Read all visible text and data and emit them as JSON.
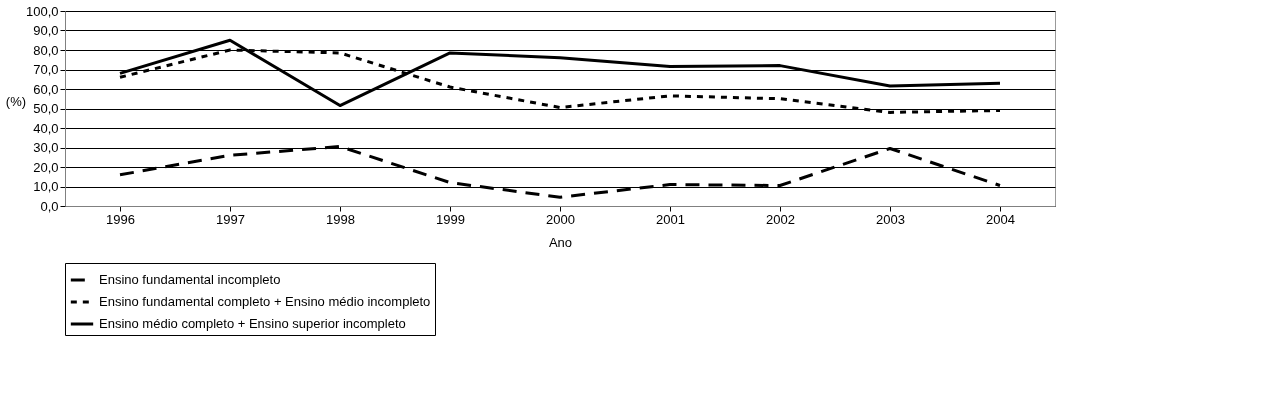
{
  "chart_data": {
    "type": "line",
    "xlabel": "Ano",
    "ylabel": "(%)",
    "categories": [
      "1996",
      "1997",
      "1998",
      "1999",
      "2000",
      "2001",
      "2002",
      "2003",
      "2004"
    ],
    "series": [
      {
        "name": "Ensino fundamental incompleto",
        "color": "#000000",
        "line_style": "dashed",
        "values": [
          16,
          26,
          30.5,
          12,
          4.5,
          11,
          10.5,
          29.5,
          10.5
        ]
      },
      {
        "name": "Ensino fundamental completo + Ensino médio incompleto",
        "color": "#000000",
        "line_style": "dotted",
        "values": [
          66,
          80,
          78.5,
          61,
          50.5,
          56.5,
          55,
          48,
          49
        ]
      },
      {
        "name": "Ensino médio completo + Ensino superior incompleto",
        "color": "#000000",
        "line_style": "solid",
        "values": [
          68,
          85,
          51.5,
          78.5,
          76,
          71.5,
          72,
          61.5,
          63
        ]
      }
    ],
    "ylim": [
      0,
      100
    ],
    "yticks": [
      {
        "value": 0,
        "label": "0,0"
      },
      {
        "value": 10,
        "label": "10,0"
      },
      {
        "value": 20,
        "label": "20,0"
      },
      {
        "value": 30,
        "label": "30,0"
      },
      {
        "value": 40,
        "label": "40,0"
      },
      {
        "value": 50,
        "label": "50,0"
      },
      {
        "value": 60,
        "label": "60,0"
      },
      {
        "value": 70,
        "label": "70,0"
      },
      {
        "value": 80,
        "label": "80,0"
      },
      {
        "value": 90,
        "label": "90,0"
      },
      {
        "value": 100,
        "label": "100,0"
      }
    ],
    "grid": "y",
    "legend": "bottom",
    "marker": "none"
  }
}
